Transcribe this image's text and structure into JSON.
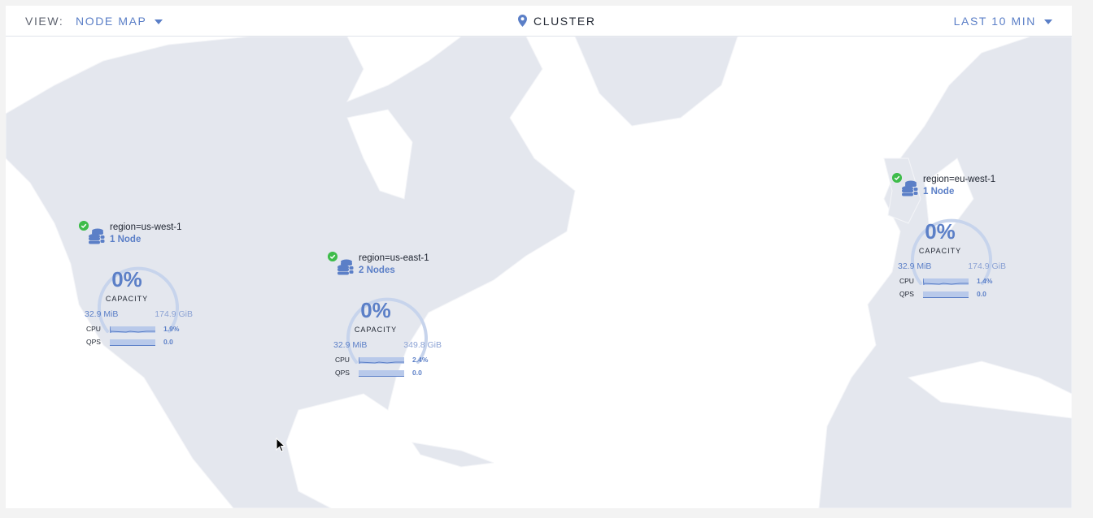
{
  "header": {
    "view_label": "VIEW:",
    "view_value": "NODE MAP",
    "location_icon": "map-pin-icon",
    "breadcrumb": "CLUSTER",
    "time_range": "LAST 10 MIN"
  },
  "colors": {
    "accent": "#5b7fc7",
    "healthy": "#3ebc4a",
    "land": "#e4e7ee",
    "water": "#ffffff"
  },
  "regions": [
    {
      "name": "region=us-west-1",
      "nodes": "1 Node",
      "status": "healthy",
      "capacity_pct": "0%",
      "capacity_label": "CAPACITY",
      "used": "32.9 MiB",
      "total": "174.9 GiB",
      "cpu_label": "CPU",
      "cpu": "1.9%",
      "qps_label": "QPS",
      "qps": "0.0"
    },
    {
      "name": "region=us-east-1",
      "nodes": "2 Nodes",
      "status": "healthy",
      "capacity_pct": "0%",
      "capacity_label": "CAPACITY",
      "used": "32.9 MiB",
      "total": "349.8 GiB",
      "cpu_label": "CPU",
      "cpu": "2.4%",
      "qps_label": "QPS",
      "qps": "0.0"
    },
    {
      "name": "region=eu-west-1",
      "nodes": "1 Node",
      "status": "healthy",
      "capacity_pct": "0%",
      "capacity_label": "CAPACITY",
      "used": "32.9 MiB",
      "total": "174.9 GiB",
      "cpu_label": "CPU",
      "cpu": "1.4%",
      "qps_label": "QPS",
      "qps": "0.0"
    }
  ]
}
